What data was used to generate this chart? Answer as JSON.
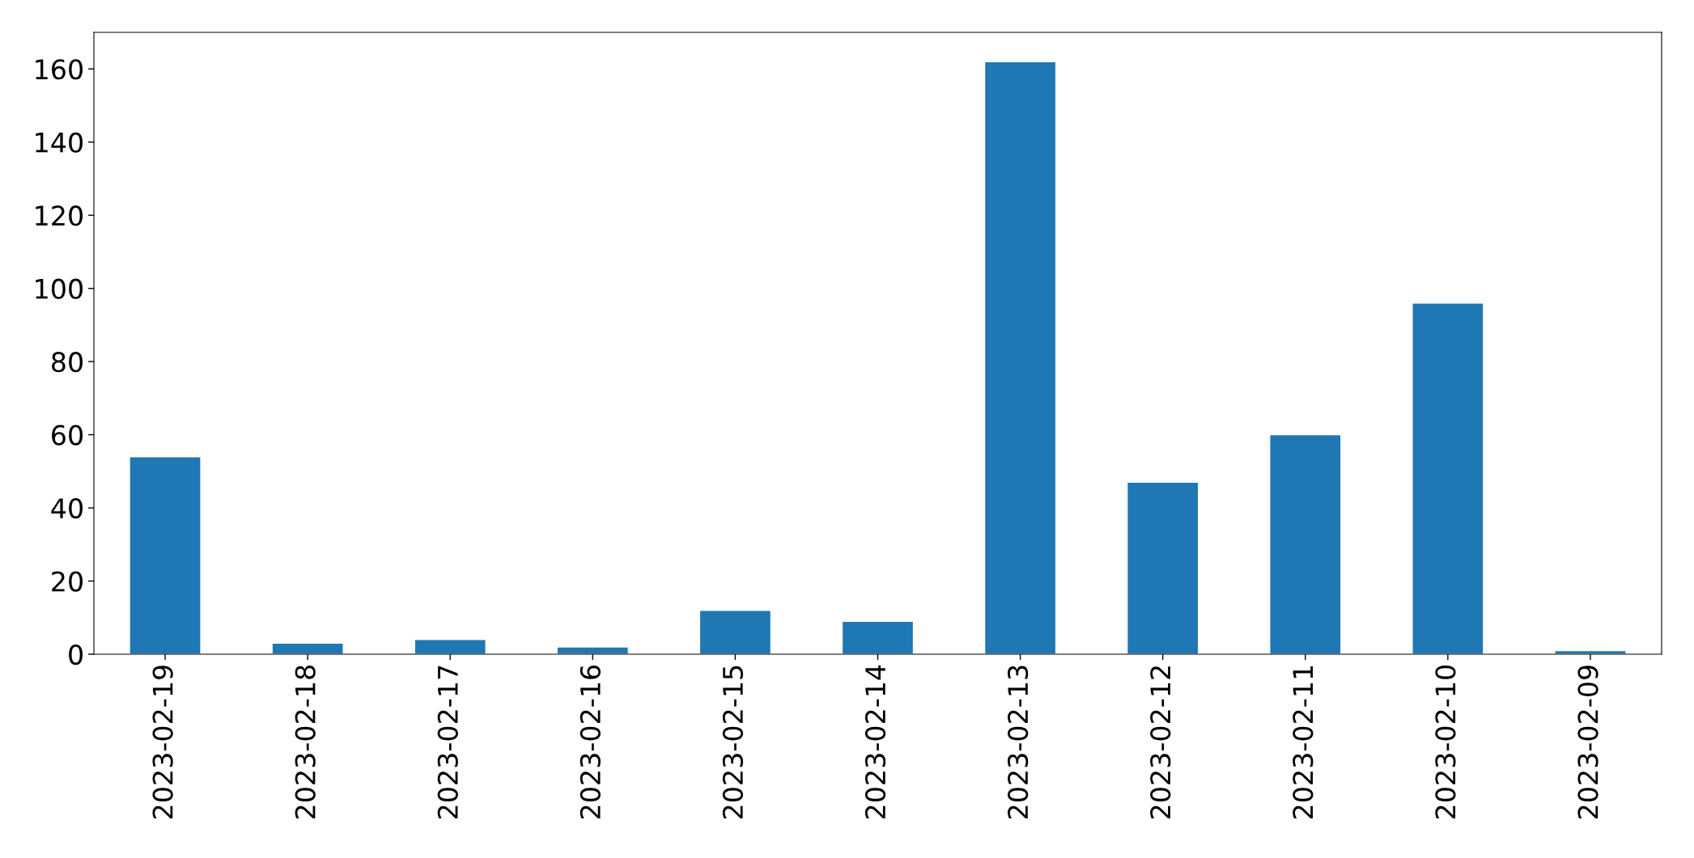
{
  "chart_data": {
    "type": "bar",
    "categories": [
      "2023-02-19",
      "2023-02-18",
      "2023-02-17",
      "2023-02-16",
      "2023-02-15",
      "2023-02-14",
      "2023-02-13",
      "2023-02-12",
      "2023-02-11",
      "2023-02-10",
      "2023-02-09"
    ],
    "values": [
      54,
      3,
      4,
      2,
      12,
      9,
      162,
      47,
      60,
      96,
      1
    ],
    "color": "#1f77b4",
    "ylim": [
      0,
      170
    ],
    "yticks": [
      0,
      20,
      40,
      60,
      80,
      100,
      120,
      140,
      160
    ],
    "grid": false
  }
}
